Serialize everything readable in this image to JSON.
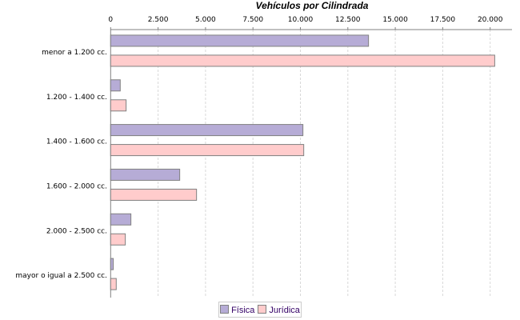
{
  "chart_data": {
    "type": "bar",
    "orientation": "horizontal",
    "title": "Vehículos por Cilindrada",
    "categories": [
      "menor a 1.200 cc.",
      "1.200 - 1.400 cc.",
      "1.400 - 1.600 cc.",
      "1.600 - 2.000 cc.",
      "2.000 - 2.500 cc.",
      "mayor o igual a 2.500 cc."
    ],
    "series": [
      {
        "name": "Física",
        "color": "#b6acd6",
        "values": [
          13590,
          506,
          10133,
          3640,
          1068,
          140
        ]
      },
      {
        "name": "Jurídica",
        "color": "#ffcccc",
        "values": [
          20240,
          815,
          10176,
          4526,
          773,
          295
        ]
      }
    ],
    "xlim": [
      0,
      21200
    ],
    "ticks": [
      "0",
      "2.500",
      "5.000",
      "7.500",
      "10.000",
      "12.500",
      "15.000",
      "17.500",
      "20.000"
    ],
    "tick_values": [
      0,
      2500,
      5000,
      7500,
      10000,
      12500,
      15000,
      17500,
      20000
    ],
    "axis_position": "top",
    "grid": true,
    "legend": "bottom"
  }
}
